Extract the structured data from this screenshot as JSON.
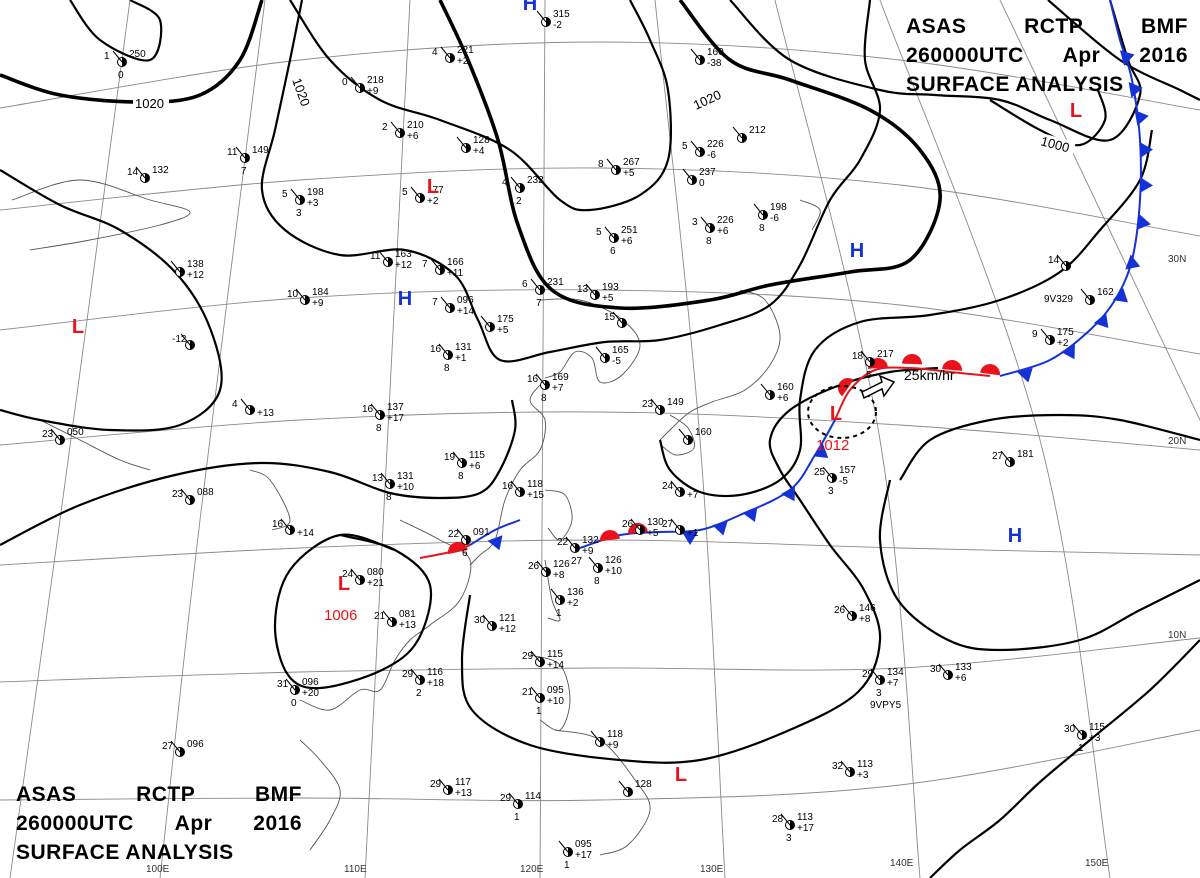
{
  "title": {
    "product": [
      "ASAS",
      "RCTP",
      "BMF"
    ],
    "time": [
      "260000UTC",
      "Apr",
      "2016"
    ],
    "subtitle": "SURFACE ANALYSIS"
  },
  "colors": {
    "low": "#e8131b",
    "high": "#1432d6",
    "warm_front": "#e8131b",
    "cold_front": "#1432d6",
    "isobar": "#000000",
    "grid": "#8a8a8a",
    "coast": "#555555"
  },
  "pressure_systems": [
    {
      "type": "L",
      "pressure": "1006",
      "note": ""
    },
    {
      "type": "L",
      "pressure": "1012",
      "note": "25km/hr"
    },
    {
      "type": "L",
      "pressure": "",
      "note": ""
    },
    {
      "type": "L",
      "pressure": "",
      "note": ""
    },
    {
      "type": "L",
      "pressure": "",
      "note": ""
    },
    {
      "type": "L",
      "pressure": "",
      "note": ""
    },
    {
      "type": "H",
      "pressure": "",
      "note": ""
    },
    {
      "type": "H",
      "pressure": "",
      "note": ""
    },
    {
      "type": "H",
      "pressure": "",
      "note": ""
    },
    {
      "type": "H",
      "pressure": "",
      "note": ""
    }
  ],
  "isobar_labels": [
    "1020",
    "1020",
    "1020",
    "1000"
  ],
  "latitude_labels": [
    "30N",
    "20N",
    "10N"
  ],
  "longitude_labels": [
    "100E",
    "110E",
    "120E",
    "130E",
    "140E",
    "150E"
  ],
  "station_plots": [
    {
      "temp": "11",
      "pressure": "149",
      "tendency": "",
      "dew": "7"
    },
    {
      "temp": "14",
      "pressure": "132",
      "tendency": "",
      "dew": ""
    },
    {
      "temp": "5",
      "pressure": "198",
      "tendency": "+3",
      "dew": "3"
    },
    {
      "temp": "11",
      "pressure": "163",
      "tendency": "+12",
      "dew": ""
    },
    {
      "temp": "10",
      "pressure": "184",
      "tendency": "+9",
      "dew": ""
    },
    {
      "temp": "7",
      "pressure": "166",
      "tendency": "+11",
      "dew": ""
    },
    {
      "temp": "7",
      "pressure": "096",
      "tendency": "+14",
      "dew": ""
    },
    {
      "temp": "16",
      "pressure": "131",
      "tendency": "+1",
      "dew": "8"
    },
    {
      "temp": "16",
      "pressure": "137",
      "tendency": "+17",
      "dew": "8"
    },
    {
      "temp": "19",
      "pressure": "115",
      "tendency": "+6",
      "dew": "8"
    },
    {
      "temp": "13",
      "pressure": "131",
      "tendency": "+10",
      "dew": "8"
    },
    {
      "temp": "24",
      "pressure": "080",
      "tendency": "+21",
      "dew": ""
    },
    {
      "temp": "21",
      "pressure": "081",
      "tendency": "+13",
      "dew": ""
    },
    {
      "temp": "29",
      "pressure": "116",
      "tendency": "+18",
      "dew": "2"
    },
    {
      "temp": "31",
      "pressure": "096",
      "tendency": "+20",
      "dew": "0"
    },
    {
      "temp": "27",
      "pressure": "096",
      "tendency": "",
      "dew": ""
    },
    {
      "temp": "23",
      "pressure": "050",
      "tendency": "",
      "dew": ""
    },
    {
      "temp": "23",
      "pressure": "088",
      "tendency": "",
      "dew": ""
    },
    {
      "temp": "22",
      "pressure": "091",
      "tendency": "",
      "dew": "6"
    },
    {
      "temp": "22",
      "pressure": "132",
      "tendency": "+9",
      "dew": "27"
    },
    {
      "temp": "26",
      "pressure": "126",
      "tendency": "+8",
      "dew": ""
    },
    {
      "temp": "",
      "pressure": "126",
      "tendency": "+10",
      "dew": "8"
    },
    {
      "temp": "",
      "pressure": "136",
      "tendency": "+2",
      "dew": "1"
    },
    {
      "temp": "30",
      "pressure": "121",
      "tendency": "+12",
      "dew": ""
    },
    {
      "temp": "16",
      "pressure": "118",
      "tendency": "+15",
      "dew": ""
    },
    {
      "temp": "16",
      "pressure": "169",
      "tendency": "+7",
      "dew": "8"
    },
    {
      "temp": "13",
      "pressure": "193",
      "tendency": "+5",
      "dew": ""
    },
    {
      "temp": "6",
      "pressure": "231",
      "tendency": "",
      "dew": "7"
    },
    {
      "temp": "4",
      "pressure": "232",
      "tendency": "",
      "dew": "2"
    },
    {
      "temp": "8",
      "pressure": "267",
      "tendency": "+5",
      "dew": ""
    },
    {
      "temp": "5",
      "pressure": "251",
      "tendency": "+6",
      "dew": "6"
    },
    {
      "temp": "5",
      "pressure": "226",
      "tendency": "-6",
      "dew": ""
    },
    {
      "temp": "",
      "pressure": "237",
      "tendency": "0",
      "dew": ""
    },
    {
      "temp": "3",
      "pressure": "226",
      "tendency": "+6",
      "dew": "8"
    },
    {
      "temp": "",
      "pressure": "212",
      "tendency": "",
      "dew": ""
    },
    {
      "temp": "",
      "pressure": "198",
      "tendency": "-6",
      "dew": "8"
    },
    {
      "temp": "",
      "pressure": "160",
      "tendency": "-38",
      "dew": ""
    },
    {
      "temp": "",
      "pressure": "315",
      "tendency": "-2",
      "dew": ""
    },
    {
      "temp": "4",
      "pressure": "221",
      "tendency": "+2",
      "dew": ""
    },
    {
      "temp": "0",
      "pressure": "218",
      "tendency": "+9",
      "dew": ""
    },
    {
      "temp": "2",
      "pressure": "210",
      "tendency": "+6",
      "dew": ""
    },
    {
      "temp": "5",
      "pressure": "177",
      "tendency": "+2",
      "dew": ""
    },
    {
      "temp": "",
      "pressure": "128",
      "tendency": "+4",
      "dew": ""
    },
    {
      "temp": "1",
      "pressure": "250",
      "tendency": "",
      "dew": "0"
    },
    {
      "temp": "",
      "pressure": "138",
      "tendency": "+12",
      "dew": ""
    },
    {
      "temp": "",
      "pressure": "175",
      "tendency": "+5",
      "dew": ""
    },
    {
      "temp": "15",
      "pressure": "",
      "tendency": "",
      "dew": ""
    },
    {
      "temp": "",
      "pressure": "165",
      "tendency": "-5",
      "dew": ""
    },
    {
      "temp": "23",
      "pressure": "149",
      "tendency": "",
      "dew": ""
    },
    {
      "temp": "",
      "pressure": "160",
      "tendency": "",
      "dew": ""
    },
    {
      "temp": "24",
      "pressure": "",
      "tendency": "+7",
      "dew": ""
    },
    {
      "temp": "26",
      "pressure": "130",
      "tendency": "+5",
      "dew": ""
    },
    {
      "temp": "27",
      "pressure": "",
      "tendency": "+1",
      "dew": ""
    },
    {
      "temp": "18",
      "pressure": "217",
      "tendency": "",
      "dew": "5"
    },
    {
      "temp": "",
      "pressure": "160",
      "tendency": "+6",
      "dew": ""
    },
    {
      "temp": "25",
      "pressure": "157",
      "tendency": "-5",
      "dew": "3"
    },
    {
      "temp": "9",
      "pressure": "175",
      "tendency": "+2",
      "dew": ""
    },
    {
      "temp": "14",
      "pressure": "",
      "tendency": "",
      "dew": ""
    },
    {
      "temp": "",
      "pressure": "162",
      "tendency": "",
      "dew": ""
    },
    {
      "temp": "27",
      "pressure": "181",
      "tendency": "",
      "dew": ""
    },
    {
      "temp": "26",
      "pressure": "146",
      "tendency": "+8",
      "dew": ""
    },
    {
      "temp": "29",
      "pressure": "134",
      "tendency": "+7",
      "dew": "3"
    },
    {
      "temp": "30",
      "pressure": "133",
      "tendency": "+6",
      "dew": ""
    },
    {
      "temp": "32",
      "pressure": "113",
      "tendency": "+3",
      "dew": ""
    },
    {
      "temp": "28",
      "pressure": "113",
      "tendency": "+17",
      "dew": "3"
    },
    {
      "temp": "30",
      "pressure": "115",
      "tendency": "+3",
      "dew": "1"
    },
    {
      "temp": "29",
      "pressure": "115",
      "tendency": "+14",
      "dew": ""
    },
    {
      "temp": "21",
      "pressure": "095",
      "tendency": "+10",
      "dew": "1"
    },
    {
      "temp": "",
      "pressure": "118",
      "tendency": "+9",
      "dew": ""
    },
    {
      "temp": "",
      "pressure": "128",
      "tendency": "",
      "dew": ""
    },
    {
      "temp": "29",
      "pressure": "117",
      "tendency": "+13",
      "dew": ""
    },
    {
      "temp": "29",
      "pressure": "114",
      "tendency": "",
      "dew": "1"
    },
    {
      "temp": "",
      "pressure": "095",
      "tendency": "+17",
      "dew": "1"
    },
    {
      "temp": "-12",
      "pressure": "",
      "tendency": "",
      "dew": ""
    },
    {
      "temp": "4",
      "pressure": "",
      "tendency": "+13",
      "dew": ""
    },
    {
      "temp": "16",
      "pressure": "",
      "tendency": "+14",
      "dew": ""
    }
  ],
  "station_ids": [
    "9V329",
    "9VPY5"
  ]
}
